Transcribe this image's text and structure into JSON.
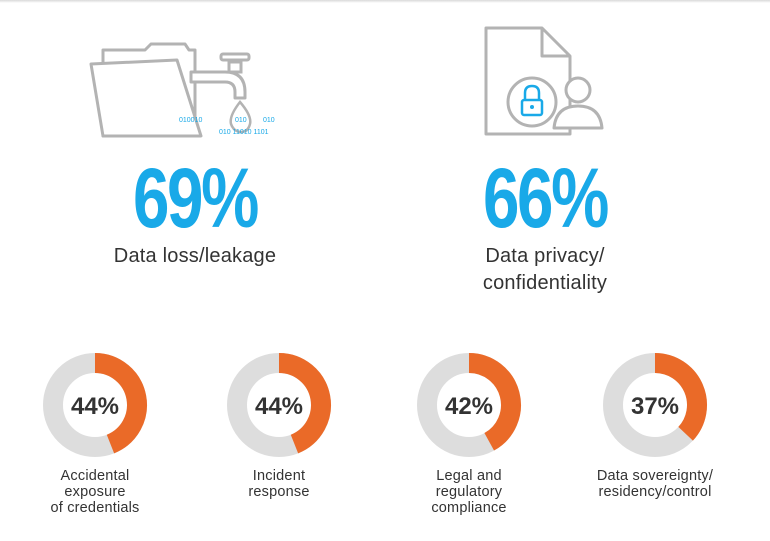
{
  "chart_data": [
    {
      "type": "pie",
      "value": 69,
      "display": "69%",
      "label": "Data loss/leakage",
      "icon": "data-leak-faucet-icon",
      "color": "#19a9e8"
    },
    {
      "type": "pie",
      "value": 66,
      "display": "66%",
      "label": "Data privacy/\nconfidentiality",
      "icon": "document-lock-user-icon",
      "color": "#19a9e8"
    },
    {
      "type": "pie",
      "value": 44,
      "display": "44%",
      "label": "Accidental\nexposure\nof credentials",
      "color": "#ea6a28",
      "track_color": "#dddddd"
    },
    {
      "type": "pie",
      "value": 44,
      "display": "44%",
      "label": "Incident\nresponse",
      "color": "#ea6a28",
      "track_color": "#dddddd"
    },
    {
      "type": "pie",
      "value": 42,
      "display": "42%",
      "label": "Legal and\nregulatory\ncompliance",
      "color": "#ea6a28",
      "track_color": "#dddddd"
    },
    {
      "type": "pie",
      "value": 37,
      "display": "37%",
      "label": "Data sovereignty/\nresidency/control",
      "color": "#ea6a28",
      "track_color": "#dddddd"
    }
  ],
  "icon_text": {
    "binary_1": "010010",
    "binary_2": "010",
    "binary_3": "010",
    "binary_4": "010 11010 1101"
  }
}
